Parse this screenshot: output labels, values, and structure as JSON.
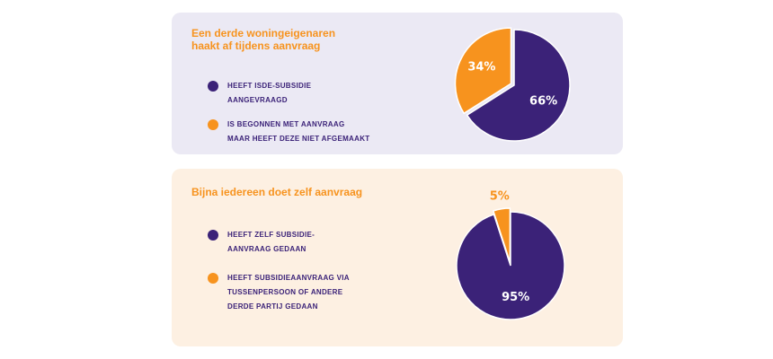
{
  "chart_data": [
    {
      "type": "pie",
      "title": "Een derde woningeigenaren\nhaakt af tijdens aanvraag",
      "labels": [
        "HEEFT ISDE-SUBSIDIE\nAANGEVRAAGD",
        "IS BEGONNEN MET AANVRAAG\nMAAR HEEFT DEZE NIET AFGEMAAKT"
      ],
      "values": [
        66,
        34
      ],
      "value_labels": [
        "66%",
        "34%"
      ],
      "colors": [
        "#3b2278",
        "#f7931e"
      ],
      "background": "#ebe9f4"
    },
    {
      "type": "pie",
      "title": "Bijna iedereen doet zelf aanvraag",
      "labels": [
        "HEEFT ZELF SUBSIDIE-\nAANVRAAG GEDAAN",
        "HEEFT SUBSIDIEAANVRAAG  VIA\nTUSSENPERSOON OF ANDERE\nDERDE PARTIJ GEDAAN"
      ],
      "values": [
        95,
        5
      ],
      "value_labels": [
        "95%",
        "5%"
      ],
      "colors": [
        "#3b2278",
        "#f7931e"
      ],
      "background": "#fdf0e2"
    }
  ]
}
